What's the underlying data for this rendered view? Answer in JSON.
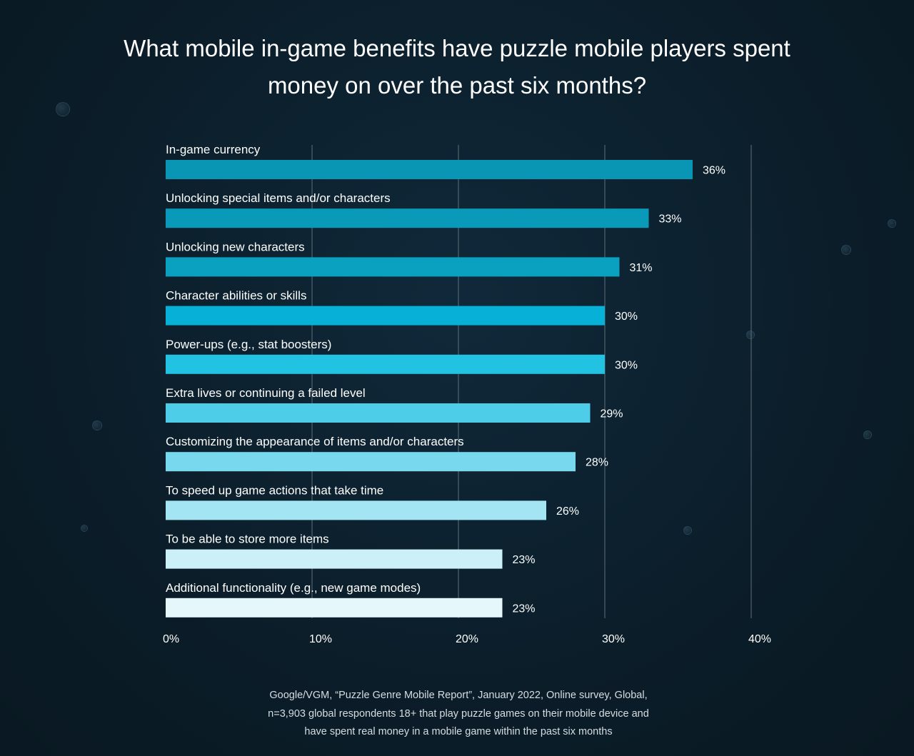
{
  "title": "What mobile in-game benefits have puzzle mobile players spent money on over the past six months?",
  "source": {
    "line1": "Google/VGM, “Puzzle Genre Mobile Report”, January 2022, Online survey, Global,",
    "line2": "n=3,903 global respondents 18+ that play puzzle games on their mobile device and",
    "line3": "have spent real money in a mobile game within the past six months"
  },
  "chart_data": {
    "type": "bar",
    "orientation": "horizontal",
    "title": "What mobile in-game benefits have puzzle mobile players spent money on over the past six months?",
    "categories": [
      "In-game currency",
      "Unlocking special items and/or characters",
      "Unlocking new characters",
      "Character abilities or skills",
      "Power-ups (e.g., stat boosters)",
      "Extra lives or continuing a failed level",
      "Customizing the appearance of items and/or characters",
      "To speed up game actions that take time",
      "To be able to store more items",
      "Additional functionality (e.g., new game modes)"
    ],
    "values": [
      36,
      33,
      31,
      30,
      30,
      29,
      28,
      26,
      23,
      23
    ],
    "value_labels": [
      "36%",
      "33%",
      "31%",
      "30%",
      "30%",
      "29%",
      "28%",
      "26%",
      "23%",
      "23%"
    ],
    "bar_colors": [
      "#0896b4",
      "#0a9ab9",
      "#0aa1c1",
      "#06b0d6",
      "#22c2e3",
      "#4dcde8",
      "#78d8ee",
      "#a3e5f3",
      "#cbf0f8",
      "#e6f7fb"
    ],
    "xlabel": "",
    "ylabel": "",
    "xlim": [
      0,
      40
    ],
    "xticks": [
      0,
      10,
      20,
      30,
      40
    ],
    "xtick_labels": [
      "0%",
      "10%",
      "20%",
      "30%",
      "40%"
    ],
    "grid": true,
    "legend": "none"
  }
}
